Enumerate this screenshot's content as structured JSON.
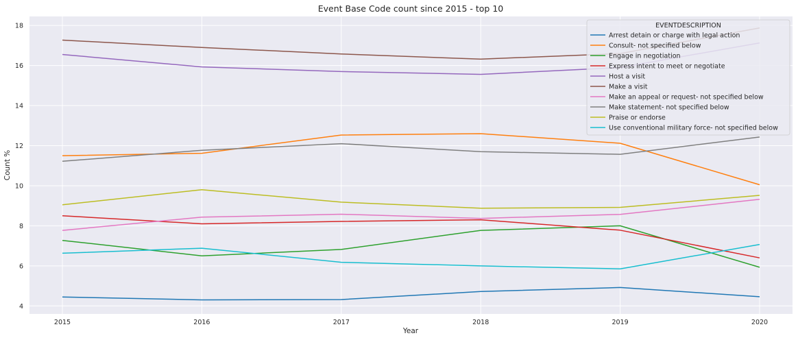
{
  "chart_data": {
    "type": "line",
    "title": "Event Base Code count since 2015 - top 10",
    "xlabel": "Year",
    "ylabel": "Count %",
    "x": [
      2015,
      2016,
      2017,
      2018,
      2019,
      2020
    ],
    "x_tick_labels": [
      "2015",
      "2016",
      "2017",
      "2018",
      "2019",
      "2020"
    ],
    "y_ticks": [
      4,
      6,
      8,
      10,
      12,
      14,
      16,
      18
    ],
    "y_tick_labels": [
      "4",
      "6",
      "8",
      "10",
      "12",
      "14",
      "16",
      "18"
    ],
    "ylim": [
      3.6,
      18.45
    ],
    "grid": true,
    "legend_title": "EVENTDESCRIPTION",
    "legend_position": "top-right",
    "series": [
      {
        "name": "Arrest detain or charge with legal action",
        "color": "#1f77b4",
        "values": [
          4.45,
          4.3,
          4.32,
          4.72,
          4.92,
          4.46
        ]
      },
      {
        "name": "Consult- not specified below",
        "color": "#ff7f0e",
        "values": [
          11.5,
          11.62,
          12.53,
          12.6,
          12.12,
          10.05
        ]
      },
      {
        "name": "Engage in negotiation",
        "color": "#2ca02c",
        "values": [
          7.27,
          6.5,
          6.82,
          7.77,
          8.0,
          5.93
        ]
      },
      {
        "name": "Express intent to meet or negotiate",
        "color": "#d62728",
        "values": [
          8.5,
          8.1,
          8.22,
          8.3,
          7.78,
          6.4
        ]
      },
      {
        "name": "Host a visit",
        "color": "#9467bd",
        "values": [
          16.55,
          15.93,
          15.7,
          15.56,
          15.9,
          17.13
        ]
      },
      {
        "name": "Make a visit",
        "color": "#8c564b",
        "values": [
          17.27,
          16.9,
          16.58,
          16.32,
          16.6,
          17.88
        ]
      },
      {
        "name": "Make an appeal or request- not specified below",
        "color": "#e377c2",
        "values": [
          7.77,
          8.43,
          8.58,
          8.37,
          8.57,
          9.32
        ]
      },
      {
        "name": "Make statement- not specified below",
        "color": "#7f7f7f",
        "values": [
          11.22,
          11.77,
          12.1,
          11.7,
          11.57,
          12.43
        ]
      },
      {
        "name": "Praise or endorse",
        "color": "#bcbd22",
        "values": [
          9.05,
          9.8,
          9.18,
          8.88,
          8.92,
          9.52
        ]
      },
      {
        "name": "Use conventional military force- not specified below",
        "color": "#17becf",
        "values": [
          6.63,
          6.88,
          6.18,
          6.0,
          5.85,
          7.07
        ]
      }
    ]
  }
}
